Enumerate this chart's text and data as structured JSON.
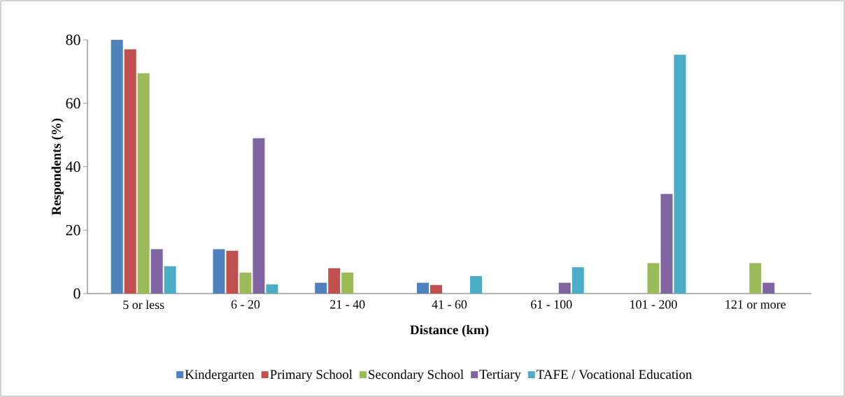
{
  "chart_data": {
    "type": "bar",
    "xlabel": "Distance (km)",
    "ylabel": "Respondents (%)",
    "categories": [
      "5 or less",
      "6 - 20",
      "21 - 40",
      "41 - 60",
      "61 - 100",
      "101 - 200",
      "121 or more"
    ],
    "series": [
      {
        "name": "Kindergarten",
        "color": "#4f81bd",
        "values": [
          80,
          14,
          3.4,
          3.4,
          0,
          0,
          0
        ]
      },
      {
        "name": "Primary School",
        "color": "#c0504d",
        "values": [
          77,
          13.5,
          8,
          2.7,
          0,
          0,
          0
        ]
      },
      {
        "name": "Secondary School",
        "color": "#9bbb59",
        "values": [
          69.5,
          6.6,
          6.6,
          0,
          0,
          9.6,
          9.6
        ]
      },
      {
        "name": "Tertiary",
        "color": "#8064a2",
        "values": [
          14,
          49,
          0,
          0,
          3.4,
          31.4,
          3.4
        ]
      },
      {
        "name": "TAFE / Vocational Education",
        "color": "#4bacc6",
        "values": [
          8.6,
          2.9,
          0,
          5.5,
          8.3,
          75.3,
          0
        ]
      }
    ],
    "ylim": [
      0,
      80
    ],
    "yticks": [
      0,
      20,
      40,
      60,
      80
    ],
    "legend": "bottom"
  }
}
